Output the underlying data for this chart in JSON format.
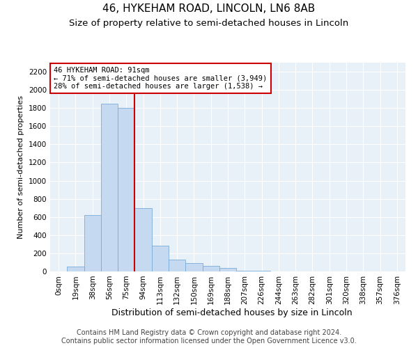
{
  "title": "46, HYKEHAM ROAD, LINCOLN, LN6 8AB",
  "subtitle": "Size of property relative to semi-detached houses in Lincoln",
  "xlabel": "Distribution of semi-detached houses by size in Lincoln",
  "ylabel": "Number of semi-detached properties",
  "footer1": "Contains HM Land Registry data © Crown copyright and database right 2024.",
  "footer2": "Contains public sector information licensed under the Open Government Licence v3.0.",
  "bar_labels": [
    "0sqm",
    "19sqm",
    "38sqm",
    "56sqm",
    "75sqm",
    "94sqm",
    "113sqm",
    "132sqm",
    "150sqm",
    "169sqm",
    "188sqm",
    "207sqm",
    "226sqm",
    "244sqm",
    "263sqm",
    "282sqm",
    "301sqm",
    "320sqm",
    "338sqm",
    "357sqm",
    "376sqm"
  ],
  "bar_values": [
    0,
    50,
    620,
    1850,
    1800,
    700,
    280,
    130,
    90,
    60,
    35,
    10,
    5,
    2,
    1,
    0,
    0,
    0,
    0,
    0,
    0
  ],
  "bar_color": "#c5d9f0",
  "bar_edge_color": "#7aabda",
  "vline_index": 5,
  "vline_color": "#cc0000",
  "annotation_text": "46 HYKEHAM ROAD: 91sqm\n← 71% of semi-detached houses are smaller (3,949)\n28% of semi-detached houses are larger (1,538) →",
  "annotation_box_color": "#ffffff",
  "annotation_box_edge_color": "#cc0000",
  "ylim": [
    0,
    2300
  ],
  "yticks": [
    0,
    200,
    400,
    600,
    800,
    1000,
    1200,
    1400,
    1600,
    1800,
    2000,
    2200
  ],
  "bg_color": "#e8f0f8",
  "title_fontsize": 11,
  "subtitle_fontsize": 9.5,
  "ylabel_fontsize": 8,
  "xlabel_fontsize": 9,
  "tick_fontsize": 7.5,
  "footer_fontsize": 7,
  "annot_fontsize": 7.5
}
